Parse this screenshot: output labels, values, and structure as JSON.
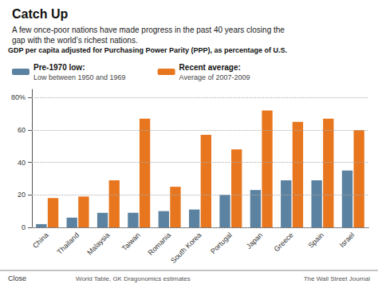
{
  "chart_data": {
    "type": "bar",
    "title": "Catch Up",
    "subtitle": "A few once-poor nations have made progress in the past 40 years closing the\ngap with the world’s richest nations.",
    "annotations": [
      "GDP per capita adjusted for Purchasing Power Parity (PPP), as percentage of U.S.",
      "Low between 1950 and 1969",
      "Average of 2007-2009",
      "Close",
      "World Table, GK Dragonomics estimates",
      "The Wall Street Journal"
    ],
    "categories": [
      "China",
      "Thailand",
      "Malaysia",
      "Taiwan",
      "Romania",
      "South Korea",
      "Portugal",
      "Japan",
      "Greece",
      "Spain",
      "Israel"
    ],
    "series": [
      {
        "name": "Pre-1970 low:",
        "color": "#5b82a0",
        "values": [
          2,
          6,
          9,
          9,
          10,
          11,
          20,
          23,
          29,
          29,
          35
        ]
      },
      {
        "name": "Recent average:",
        "color": "#e8761e",
        "values": [
          18,
          19,
          29,
          67,
          25,
          57,
          48,
          72,
          65,
          67,
          60
        ]
      }
    ],
    "ylim": [
      0,
      85
    ],
    "yticks": [
      0,
      20,
      40,
      60,
      {
        "value": 80,
        "label": "80%"
      }
    ],
    "grid": true,
    "legend": "top"
  }
}
